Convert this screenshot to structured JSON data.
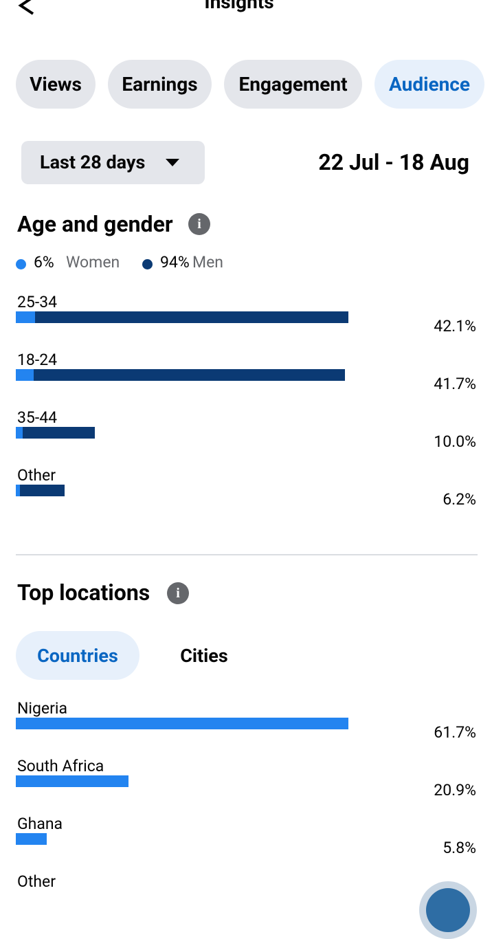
{
  "header": {
    "title": "Insights"
  },
  "tabs": {
    "items": [
      "Views",
      "Earnings",
      "Engagement",
      "Audience"
    ],
    "active": 3
  },
  "date_range": {
    "preset": "Last 28 days",
    "dates": "22 Jul - 18 Aug"
  },
  "age_gender": {
    "title": "Age and gender",
    "legend": [
      {
        "share": "6%",
        "name": "Women",
        "color": "#2384f0"
      },
      {
        "share": "94%",
        "name": "Men",
        "color": "#0b3a74"
      }
    ],
    "rows": [
      {
        "name": "25-34",
        "value": 42.1,
        "value_label": "42.1%",
        "women": 2.4
      },
      {
        "name": "18-24",
        "value": 41.7,
        "value_label": "41.7%",
        "women": 2.3
      },
      {
        "name": "35-44",
        "value": 10.0,
        "value_label": "10.0%",
        "women": 0.9
      },
      {
        "name": "Other",
        "value": 6.2,
        "value_label": "6.2%",
        "women": 0.5
      }
    ]
  },
  "top_locations": {
    "title": "Top locations",
    "subtabs": {
      "items": [
        "Countries",
        "Cities"
      ],
      "active": 0
    },
    "color": "#2384f0",
    "rows": [
      {
        "name": "Nigeria",
        "value": 61.7,
        "value_label": "61.7%"
      },
      {
        "name": "South Africa",
        "value": 20.9,
        "value_label": "20.9%"
      },
      {
        "name": "Ghana",
        "value": 5.8,
        "value_label": "5.8%"
      },
      {
        "name": "Other"
      }
    ]
  }
}
